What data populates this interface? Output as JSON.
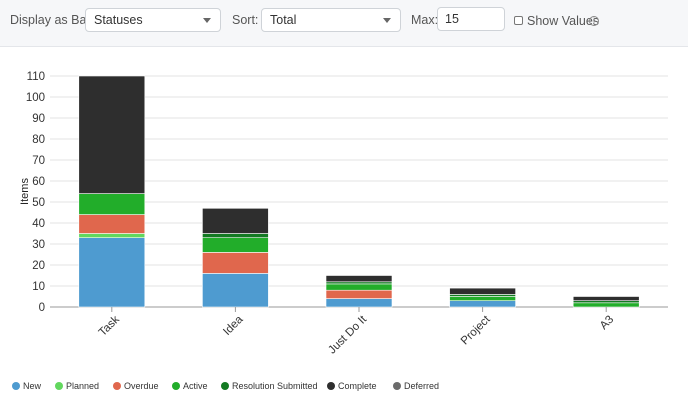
{
  "toolbar": {
    "display_label": "Display as Bar:",
    "display_value": "Statuses",
    "sort_label": "Sort:",
    "sort_value": "Total",
    "max_label": "Max:",
    "max_value": "15",
    "show_values_label": "Show Values",
    "show_values_checked": false,
    "info_glyph": "i"
  },
  "chart_data": {
    "type": "bar",
    "stacked": true,
    "categories": [
      "Task",
      "Idea",
      "Just Do It",
      "Project",
      "A3"
    ],
    "ylabel": "Items",
    "xlabel": "",
    "ylim": [
      0,
      110
    ],
    "yticks": [
      0,
      10,
      20,
      30,
      40,
      50,
      60,
      70,
      80,
      90,
      100,
      110
    ],
    "grid": true,
    "legend_position": "bottom-left",
    "series": [
      {
        "name": "New",
        "color": "#4e9bd0",
        "values": [
          33,
          16,
          4,
          3,
          0
        ]
      },
      {
        "name": "Planned",
        "color": "#62d75e",
        "values": [
          2,
          0,
          0,
          0,
          0
        ]
      },
      {
        "name": "Overdue",
        "color": "#e0674d",
        "values": [
          9,
          10,
          4,
          0,
          0
        ]
      },
      {
        "name": "Active",
        "color": "#22ad2a",
        "values": [
          10,
          7,
          3,
          2,
          2
        ]
      },
      {
        "name": "Resolution Submitted",
        "color": "#137a22",
        "values": [
          0,
          2,
          1,
          1,
          1
        ]
      },
      {
        "name": "Complete",
        "color": "#2e2e2e",
        "values": [
          56,
          12,
          3,
          3,
          2
        ]
      },
      {
        "name": "Deferred",
        "color": "#6b6b6b",
        "values": [
          0,
          0,
          0,
          0,
          0
        ]
      }
    ]
  }
}
